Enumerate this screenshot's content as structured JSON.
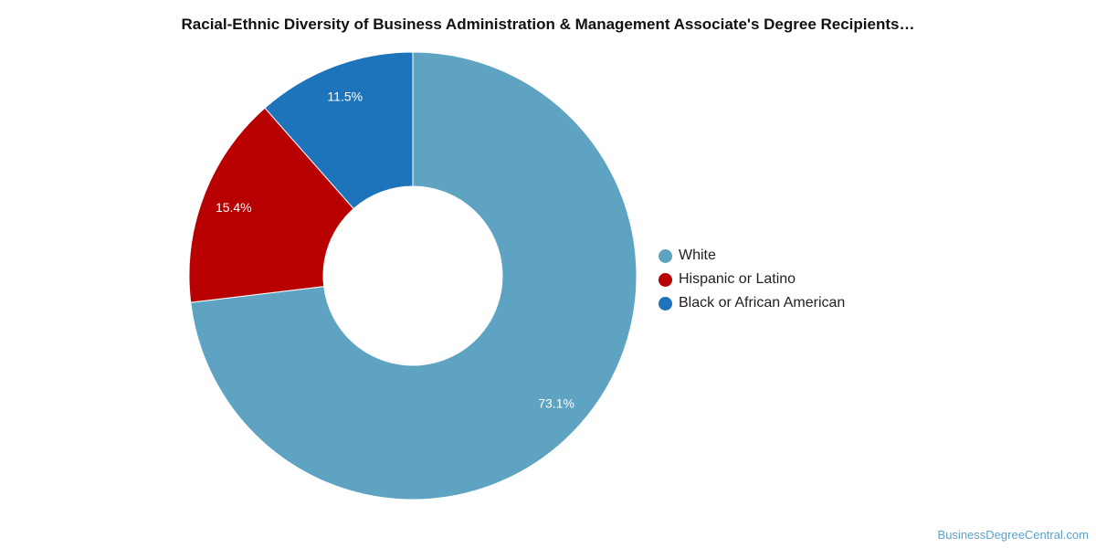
{
  "chart_data": {
    "type": "pie",
    "title": "Racial-Ethnic Diversity of Business Administration & Management Associate's Degree Recipients…",
    "categories": [
      "White",
      "Hispanic or Latino",
      "Black or African American"
    ],
    "values": [
      73.1,
      15.4,
      11.5
    ],
    "value_labels": [
      "73.1%",
      "15.4%",
      "11.5%"
    ],
    "colors": [
      "#5ea3c1",
      "#b80000",
      "#1e74bb"
    ],
    "donut": true,
    "legend_position": "right"
  },
  "legend": {
    "items": [
      {
        "label": "White",
        "color": "#5ea3c1"
      },
      {
        "label": "Hispanic or Latino",
        "color": "#b80000"
      },
      {
        "label": "Black or African American",
        "color": "#1e74bb"
      }
    ]
  },
  "watermark": "BusinessDegreeCentral.com"
}
